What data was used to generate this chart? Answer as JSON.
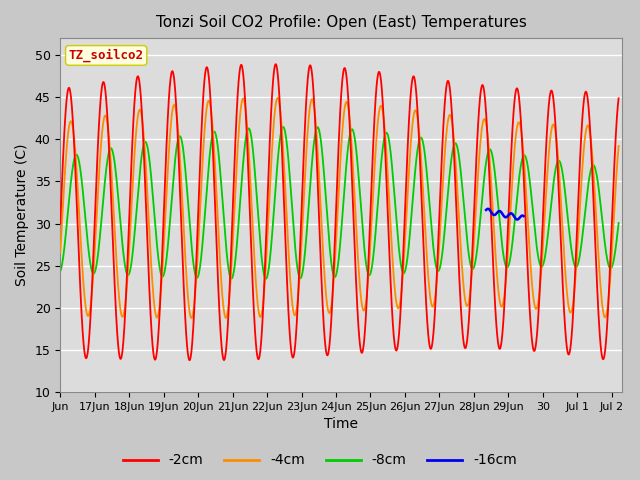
{
  "title": "Tonzi Soil CO2 Profile: Open (East) Temperatures",
  "xlabel": "Time",
  "ylabel": "Soil Temperature (C)",
  "ylim": [
    10,
    52
  ],
  "yticks": [
    10,
    15,
    20,
    25,
    30,
    35,
    40,
    45,
    50
  ],
  "legend_label": "TZ_soilco2",
  "series_labels": [
    "-2cm",
    "-4cm",
    "-8cm",
    "-16cm"
  ],
  "series_colors": [
    "#FF0000",
    "#FF8C00",
    "#00CC00",
    "#0000EE"
  ],
  "background_color": "#DCDCDC",
  "fig_background": "#C8C8C8",
  "x_tick_labels": [
    "Jun",
    "17Jun",
    "18Jun",
    "19Jun",
    "20Jun",
    "21Jun",
    "22Jun",
    "23Jun",
    "24Jun",
    "25Jun",
    "26Jun",
    "27Jun",
    "28Jun",
    "29Jun",
    "30",
    "Jul 1",
    "Jul 2"
  ],
  "x_tick_positions": [
    16.0,
    17.0,
    18.0,
    19.0,
    20.0,
    21.0,
    22.0,
    23.0,
    24.0,
    25.0,
    26.0,
    27.0,
    28.0,
    29.0,
    30.0,
    31.0,
    32.0
  ],
  "xlim": [
    16.0,
    32.3
  ]
}
